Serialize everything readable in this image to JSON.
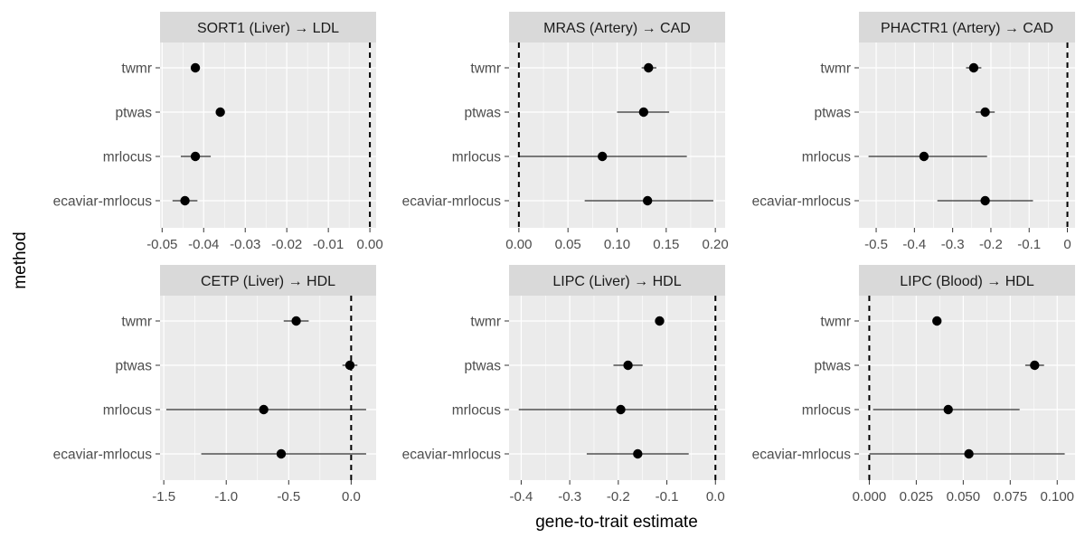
{
  "chart_data": {
    "type": "scatter",
    "xlabel": "gene-to-trait estimate",
    "ylabel": "method",
    "methods": [
      "twmr",
      "ptwas",
      "mrlocus",
      "ecaviar-mrlocus"
    ],
    "reference_x": 0,
    "panels": [
      {
        "title": "SORT1 (Liver) → LDL",
        "xlim": [
          -0.0505,
          0.0015
        ],
        "xticks": [
          -0.05,
          -0.04,
          -0.03,
          -0.02,
          -0.01,
          0.0
        ],
        "xtick_labels": [
          "-0.05",
          "-0.04",
          "-0.03",
          "-0.02",
          "-0.01",
          "0.00"
        ],
        "estimates": [
          {
            "method": "twmr",
            "x": -0.042,
            "low": -0.0423,
            "high": -0.0417
          },
          {
            "method": "ptwas",
            "x": -0.036,
            "low": -0.0363,
            "high": -0.0357
          },
          {
            "method": "mrlocus",
            "x": -0.042,
            "low": -0.0455,
            "high": -0.0383
          },
          {
            "method": "ecaviar-mrlocus",
            "x": -0.0445,
            "low": -0.0475,
            "high": -0.0415
          }
        ]
      },
      {
        "title": "MRAS (Artery) → CAD",
        "xlim": [
          -0.01,
          0.21
        ],
        "xticks": [
          0.0,
          0.05,
          0.1,
          0.15,
          0.2
        ],
        "xtick_labels": [
          "0.00",
          "0.05",
          "0.10",
          "0.15",
          "0.20"
        ],
        "estimates": [
          {
            "method": "twmr",
            "x": 0.132,
            "low": 0.125,
            "high": 0.14
          },
          {
            "method": "ptwas",
            "x": 0.127,
            "low": 0.1,
            "high": 0.153
          },
          {
            "method": "mrlocus",
            "x": 0.085,
            "low": 0.0,
            "high": 0.171
          },
          {
            "method": "ecaviar-mrlocus",
            "x": 0.131,
            "low": 0.067,
            "high": 0.198
          }
        ]
      },
      {
        "title": "PHACTR1 (Artery) → CAD",
        "xlim": [
          -0.545,
          0.02
        ],
        "xticks": [
          -0.5,
          -0.4,
          -0.3,
          -0.2,
          -0.1,
          0.0
        ],
        "xtick_labels": [
          "-0.5",
          "-0.4",
          "-0.3",
          "-0.2",
          "-0.1",
          "0"
        ],
        "estimates": [
          {
            "method": "twmr",
            "x": -0.245,
            "low": -0.265,
            "high": -0.225
          },
          {
            "method": "ptwas",
            "x": -0.215,
            "low": -0.24,
            "high": -0.19
          },
          {
            "method": "mrlocus",
            "x": -0.375,
            "low": -0.52,
            "high": -0.21
          },
          {
            "method": "ecaviar-mrlocus",
            "x": -0.215,
            "low": -0.34,
            "high": -0.09
          }
        ]
      },
      {
        "title": "CETP (Liver) → HDL",
        "xlim": [
          -1.53,
          0.2
        ],
        "xticks": [
          -1.5,
          -1.0,
          -0.5,
          0.0
        ],
        "xtick_labels": [
          "-1.5",
          "-1.0",
          "-0.5",
          "0.0"
        ],
        "estimates": [
          {
            "method": "twmr",
            "x": -0.44,
            "low": -0.54,
            "high": -0.34
          },
          {
            "method": "ptwas",
            "x": -0.01,
            "low": -0.07,
            "high": 0.05
          },
          {
            "method": "mrlocus",
            "x": -0.7,
            "low": -1.48,
            "high": 0.12
          },
          {
            "method": "ecaviar-mrlocus",
            "x": -0.56,
            "low": -1.2,
            "high": 0.12
          }
        ]
      },
      {
        "title": "LIPC (Liver) → HDL",
        "xlim": [
          -0.425,
          0.02
        ],
        "xticks": [
          -0.4,
          -0.3,
          -0.2,
          -0.1,
          0.0
        ],
        "xtick_labels": [
          "-0.4",
          "-0.3",
          "-0.2",
          "-0.1",
          "0.0"
        ],
        "estimates": [
          {
            "method": "twmr",
            "x": -0.115,
            "low": -0.118,
            "high": -0.112
          },
          {
            "method": "ptwas",
            "x": -0.18,
            "low": -0.21,
            "high": -0.15
          },
          {
            "method": "mrlocus",
            "x": -0.195,
            "low": -0.405,
            "high": 0.005
          },
          {
            "method": "ecaviar-mrlocus",
            "x": -0.16,
            "low": -0.265,
            "high": -0.055
          }
        ]
      },
      {
        "title": "LIPC (Blood) → HDL",
        "xlim": [
          -0.0055,
          0.1095
        ],
        "xticks": [
          0.0,
          0.025,
          0.05,
          0.075,
          0.1
        ],
        "xtick_labels": [
          "0.000",
          "0.025",
          "0.050",
          "0.075",
          "0.100"
        ],
        "estimates": [
          {
            "method": "twmr",
            "x": 0.036,
            "low": 0.0355,
            "high": 0.0365
          },
          {
            "method": "ptwas",
            "x": 0.088,
            "low": 0.083,
            "high": 0.093
          },
          {
            "method": "mrlocus",
            "x": 0.042,
            "low": 0.002,
            "high": 0.08
          },
          {
            "method": "ecaviar-mrlocus",
            "x": 0.053,
            "low": 0.0,
            "high": 0.104
          }
        ]
      }
    ]
  }
}
